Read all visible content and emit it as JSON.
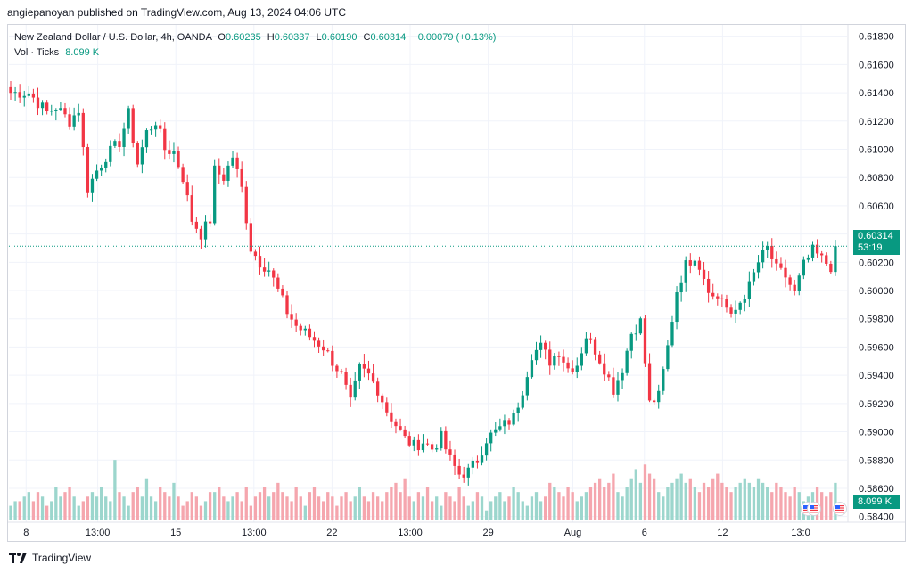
{
  "header": {
    "published_line": "angiepanoyan published on TradingView.com, Aug 13, 2024 04:06 UTC"
  },
  "legend": {
    "symbol": "New Zealand Dollar / U.S. Dollar, 4h, OANDA",
    "o_label": "O",
    "o_value": "0.60235",
    "h_label": "H",
    "h_value": "0.60337",
    "l_label": "L",
    "l_value": "0.60190",
    "c_label": "C",
    "c_value": "0.60314",
    "change": "+0.00079 (+0.13%)",
    "vol_label": "Vol · Ticks",
    "vol_value": "8.099 K"
  },
  "badges": {
    "last_price": "0.60314",
    "countdown": "53:19",
    "volume": "8.099 K"
  },
  "footer": {
    "brand": "TradingView"
  },
  "colors": {
    "up": "#089981",
    "down": "#f23645",
    "up_vol": "#9cd6cd",
    "down_vol": "#f5a6ae",
    "grid": "#f0f3fa"
  },
  "chart_data": {
    "type": "candlestick",
    "title": "New Zealand Dollar / U.S. Dollar, 4h, OANDA",
    "y_axis": {
      "range": [
        0.5836,
        0.6188
      ],
      "ticks": [
        "0.61800",
        "0.61600",
        "0.61400",
        "0.61200",
        "0.61000",
        "0.60800",
        "0.60600",
        "0.60400",
        "0.60200",
        "0.60000",
        "0.59800",
        "0.59600",
        "0.59400",
        "0.59200",
        "0.59000",
        "0.58800",
        "0.58600",
        "0.58400"
      ]
    },
    "x_axis": {
      "tick_labels": [
        "8",
        "13:00",
        "15",
        "13:00",
        "22",
        "13:00",
        "29",
        "Aug",
        "6",
        "12",
        "13:0"
      ]
    },
    "last_price_line": 0.60314,
    "volume_max": 14,
    "path_points": [
      [
        0,
        0.614
      ],
      [
        4,
        0.614
      ],
      [
        8,
        0.6126
      ],
      [
        10,
        0.613
      ],
      [
        13,
        0.612
      ],
      [
        15,
        0.6128
      ],
      [
        17,
        0.6072
      ],
      [
        19,
        0.6085
      ],
      [
        21,
        0.6095
      ],
      [
        24,
        0.6105
      ],
      [
        26,
        0.6125
      ],
      [
        28,
        0.609
      ],
      [
        30,
        0.6112
      ],
      [
        32,
        0.612
      ],
      [
        34,
        0.61
      ],
      [
        36,
        0.6098
      ],
      [
        38,
        0.608
      ],
      [
        40,
        0.605
      ],
      [
        42,
        0.604
      ],
      [
        44,
        0.605
      ],
      [
        45,
        0.6085
      ],
      [
        47,
        0.608
      ],
      [
        49,
        0.6095
      ],
      [
        51,
        0.6072
      ],
      [
        53,
        0.603
      ],
      [
        55,
        0.602
      ],
      [
        57,
        0.6015
      ],
      [
        59,
        0.6
      ],
      [
        61,
        0.5985
      ],
      [
        63,
        0.5975
      ],
      [
        65,
        0.597
      ],
      [
        67,
        0.5965
      ],
      [
        69,
        0.596
      ],
      [
        71,
        0.595
      ],
      [
        73,
        0.594
      ],
      [
        75,
        0.592
      ],
      [
        77,
        0.5945
      ],
      [
        79,
        0.594
      ],
      [
        81,
        0.593
      ],
      [
        83,
        0.5915
      ],
      [
        85,
        0.5905
      ],
      [
        87,
        0.5895
      ],
      [
        89,
        0.589
      ],
      [
        91,
        0.5893
      ],
      [
        93,
        0.5888
      ],
      [
        95,
        0.5896
      ],
      [
        97,
        0.588
      ],
      [
        99,
        0.587
      ],
      [
        101,
        0.5872
      ],
      [
        103,
        0.588
      ],
      [
        105,
        0.5895
      ],
      [
        107,
        0.59
      ],
      [
        109,
        0.5905
      ],
      [
        111,
        0.591
      ],
      [
        113,
        0.593
      ],
      [
        115,
        0.5955
      ],
      [
        117,
        0.596
      ],
      [
        119,
        0.595
      ],
      [
        121,
        0.5957
      ],
      [
        123,
        0.5945
      ],
      [
        125,
        0.5948
      ],
      [
        127,
        0.5968
      ],
      [
        129,
        0.5958
      ],
      [
        131,
        0.5945
      ],
      [
        133,
        0.593
      ],
      [
        135,
        0.5945
      ],
      [
        137,
        0.597
      ],
      [
        139,
        0.5978
      ],
      [
        141,
        0.592
      ],
      [
        143,
        0.5925
      ],
      [
        145,
        0.596
      ],
      [
        147,
        0.6
      ],
      [
        149,
        0.6018
      ],
      [
        151,
        0.6025
      ],
      [
        153,
        0.601
      ],
      [
        155,
        0.5995
      ],
      [
        157,
        0.5995
      ],
      [
        159,
        0.598
      ],
      [
        161,
        0.5992
      ],
      [
        163,
        0.6003
      ],
      [
        165,
        0.602
      ],
      [
        167,
        0.603
      ],
      [
        169,
        0.6015
      ],
      [
        171,
        0.601
      ],
      [
        173,
        0.5998
      ],
      [
        175,
        0.6018
      ],
      [
        177,
        0.6028
      ],
      [
        179,
        0.6022
      ],
      [
        181,
        0.6017
      ],
      [
        182,
        0.6031
      ]
    ],
    "volume_values": [
      3,
      4,
      4,
      5,
      6,
      4,
      6,
      5,
      3,
      4,
      7,
      5,
      6,
      7,
      5,
      3,
      4,
      5,
      6,
      5,
      7,
      5,
      4,
      13,
      6,
      5,
      3,
      6,
      7,
      5,
      9,
      5,
      4,
      7,
      6,
      5,
      8,
      5,
      3,
      4,
      6,
      5,
      3,
      4,
      6,
      6,
      7,
      5,
      4,
      5,
      6,
      4,
      7,
      3,
      5,
      6,
      7,
      5,
      6,
      8,
      6,
      5,
      4,
      7,
      5,
      3,
      6,
      7,
      5,
      4,
      6,
      5,
      3,
      5,
      6,
      4,
      5,
      7,
      5,
      4,
      6,
      5,
      4,
      6,
      7,
      8,
      6,
      9,
      5,
      4,
      6,
      5,
      7,
      4,
      5,
      3,
      6,
      5,
      4,
      7,
      5,
      3,
      4,
      6,
      5,
      2,
      4,
      5,
      6,
      4,
      5,
      7,
      6,
      4,
      3,
      5,
      6,
      4,
      5,
      8,
      7,
      6,
      5,
      7,
      6,
      4,
      5,
      6,
      7,
      8,
      9,
      7,
      8,
      10,
      6,
      5,
      7,
      9,
      11,
      8,
      12,
      10,
      9,
      6,
      5,
      7,
      8,
      9,
      10,
      8,
      9,
      7,
      6,
      8,
      7,
      9,
      10,
      8,
      7,
      6,
      7,
      8,
      9,
      8,
      7,
      9,
      8,
      7,
      6,
      8,
      7,
      6,
      5,
      7,
      6,
      4,
      5,
      6,
      7,
      6,
      5,
      6,
      8,
      5,
      4
    ]
  }
}
